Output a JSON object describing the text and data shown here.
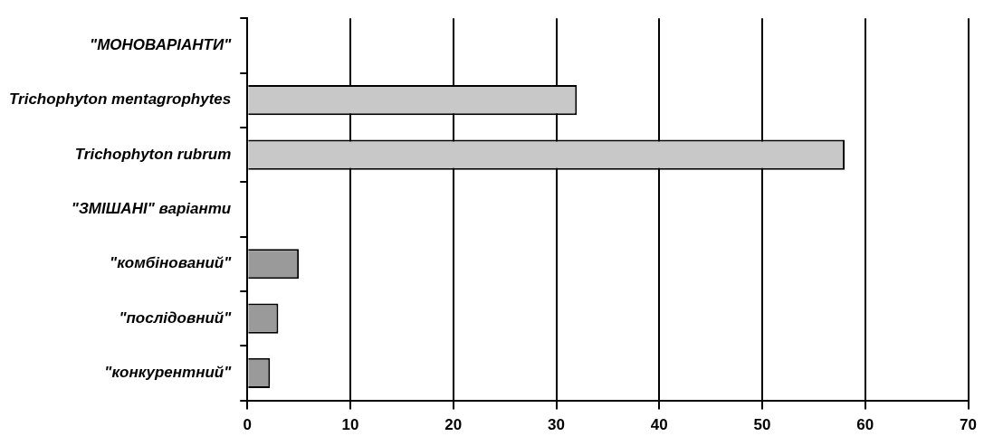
{
  "chart_data": {
    "type": "bar",
    "orientation": "horizontal",
    "categories": [
      "\"МОНОВАРІАНТИ\"",
      "Trichophyton mentagrophytes",
      "Trichophyton rubrum",
      "\"ЗМІШАНІ\" варіанти",
      "\"комбінований\"",
      "\"послідовний\"",
      "\"конкурентний\""
    ],
    "values": [
      null,
      32,
      58,
      null,
      5,
      3,
      2.2
    ],
    "colors": [
      "#c8c8c8",
      "#c8c8c8",
      "#c8c8c8",
      "#c8c8c8",
      "#9a9a9a",
      "#9a9a9a",
      "#9a9a9a"
    ],
    "xlim": [
      0,
      70
    ],
    "xticks": [
      0,
      10,
      20,
      30,
      40,
      50,
      60,
      70
    ],
    "grid": "x"
  }
}
